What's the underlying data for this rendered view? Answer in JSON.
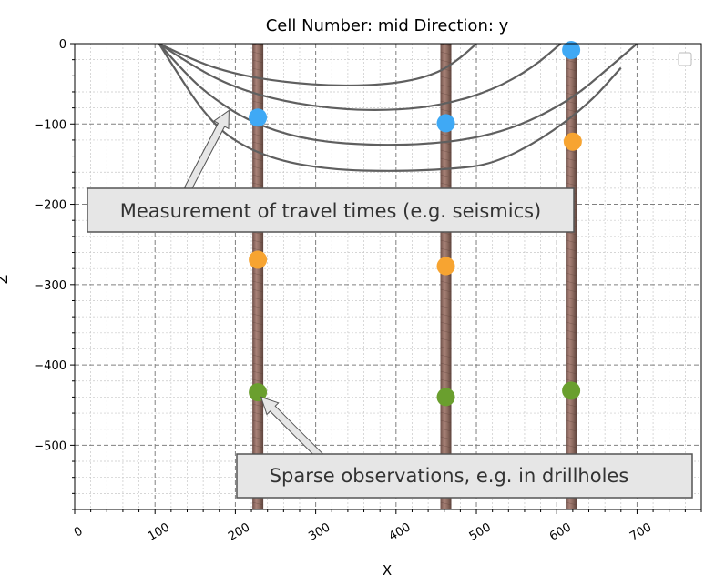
{
  "chart_data": {
    "type": "scatter",
    "title": "Cell Number: mid Direction: y",
    "xlabel": "X",
    "ylabel": "Z",
    "xlim": [
      0,
      780
    ],
    "ylim": [
      -580,
      0
    ],
    "x_ticks": [
      0,
      100,
      200,
      300,
      400,
      500,
      600,
      700
    ],
    "y_ticks": [
      0,
      -100,
      -200,
      -300,
      -400,
      -500
    ],
    "grid": "major dashed, minor dotted",
    "legend": "top-right (empty)",
    "drillholes": [
      {
        "x": 228,
        "z_top": 0,
        "z_bottom": -580
      },
      {
        "x": 462,
        "z_top": 0,
        "z_bottom": -580
      },
      {
        "x": 618,
        "z_top": 0,
        "z_bottom": -580
      }
    ],
    "series": [
      {
        "color": "#3fa9f5",
        "points": [
          {
            "x": 228,
            "y": -92
          },
          {
            "x": 462,
            "y": -99
          },
          {
            "x": 618,
            "y": -8
          }
        ]
      },
      {
        "color": "#f7a431",
        "points": [
          {
            "x": 228,
            "y": -269
          },
          {
            "x": 462,
            "y": -277
          },
          {
            "x": 620,
            "y": -122
          }
        ]
      },
      {
        "color": "#6a9f2e",
        "points": [
          {
            "x": 228,
            "y": -434
          },
          {
            "x": 462,
            "y": -440
          },
          {
            "x": 618,
            "y": -432
          }
        ]
      }
    ],
    "ray_paths": [
      [
        [
          105,
          0
        ],
        [
          150,
          -22
        ],
        [
          200,
          -38
        ],
        [
          260,
          -48
        ],
        [
          330,
          -53
        ],
        [
          400,
          -50
        ],
        [
          450,
          -38
        ],
        [
          480,
          -18
        ],
        [
          500,
          0
        ]
      ],
      [
        [
          105,
          0
        ],
        [
          150,
          -30
        ],
        [
          200,
          -55
        ],
        [
          260,
          -72
        ],
        [
          330,
          -82
        ],
        [
          400,
          -83
        ],
        [
          460,
          -76
        ],
        [
          520,
          -58
        ],
        [
          570,
          -30
        ],
        [
          605,
          0
        ]
      ],
      [
        [
          105,
          0
        ],
        [
          140,
          -40
        ],
        [
          175,
          -70
        ],
        [
          220,
          -98
        ],
        [
          280,
          -118
        ],
        [
          350,
          -126
        ],
        [
          430,
          -126
        ],
        [
          500,
          -118
        ],
        [
          560,
          -100
        ],
        [
          620,
          -68
        ],
        [
          665,
          -30
        ],
        [
          700,
          0
        ]
      ],
      [
        [
          105,
          0
        ],
        [
          130,
          -40
        ],
        [
          160,
          -85
        ],
        [
          195,
          -120
        ],
        [
          250,
          -145
        ],
        [
          320,
          -157
        ],
        [
          400,
          -159
        ],
        [
          470,
          -156
        ],
        [
          520,
          -150
        ],
        [
          580,
          -120
        ],
        [
          640,
          -75
        ],
        [
          680,
          -30
        ]
      ]
    ],
    "annotations": [
      {
        "text": "Measurement of travel times (e.g. seismics)",
        "arrow_to": {
          "x": 192,
          "y": -83
        }
      },
      {
        "text": "Sparse observations, e.g. in drillholes",
        "arrow_to": {
          "x": 232,
          "y": -440
        }
      }
    ]
  },
  "colors": {
    "grid_major": "#808080",
    "grid_minor": "#c8c8c8",
    "ray": "#5f5f5f",
    "drillhole": "#8a6b61"
  }
}
